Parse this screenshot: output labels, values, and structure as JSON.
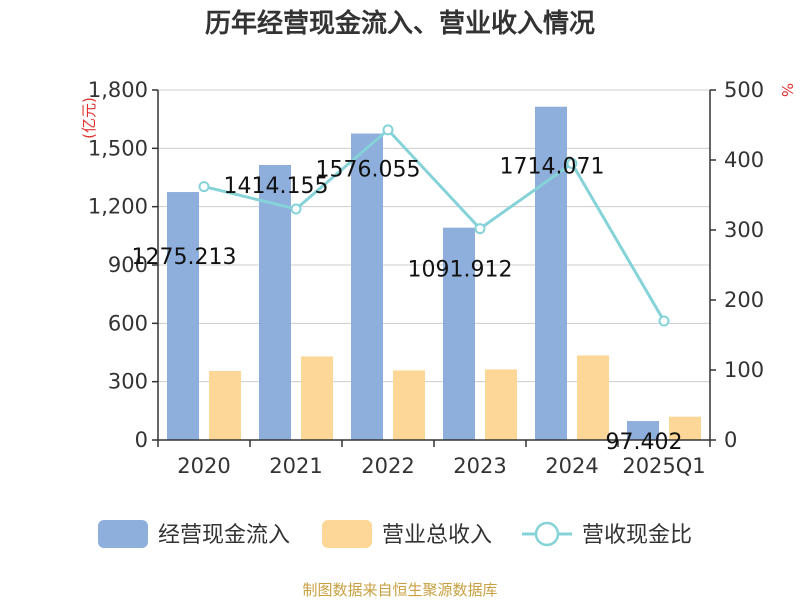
{
  "colors": {
    "cash_flow": "#8eaedb",
    "revenue": "#fdd797",
    "ratio": "#85d3d8",
    "axis": "#333333",
    "grid": "#cccccc",
    "unit": "#e03030",
    "source": "#c8a040"
  },
  "chart_data": {
    "type": "bar",
    "title": "历年经营现金流入、营业收入情况",
    "categories": [
      "2020",
      "2021",
      "2022",
      "2023",
      "2024",
      "2025Q1"
    ],
    "y_left": {
      "unit": "(亿元)",
      "ylim": [
        0,
        1800
      ],
      "ticks": [
        "0",
        "300",
        "600",
        "900",
        "1,200",
        "1,500",
        "1,800"
      ],
      "tick_values": [
        0,
        300,
        600,
        900,
        1200,
        1500,
        1800
      ]
    },
    "y_right": {
      "unit": "%",
      "ylim": [
        0,
        500
      ],
      "ticks": [
        "0",
        "100",
        "200",
        "300",
        "400",
        "500"
      ],
      "tick_values": [
        0,
        100,
        200,
        300,
        400,
        500
      ]
    },
    "series": [
      {
        "name": "经营现金流入",
        "type": "bar",
        "axis": "left",
        "values": [
          1275.213,
          1414.155,
          1576.055,
          1091.912,
          1714.071,
          97.402
        ],
        "labels": [
          "1275.213",
          "1414.155",
          "1576.055",
          "1091.912",
          "1714.071",
          "97.402"
        ]
      },
      {
        "name": "营业总收入",
        "type": "bar",
        "axis": "left",
        "values": [
          355,
          430,
          358,
          363,
          435,
          120
        ]
      },
      {
        "name": "营收现金比",
        "type": "line",
        "axis": "right",
        "values": [
          362,
          330,
          443,
          302,
          395,
          170
        ]
      }
    ],
    "grid": true,
    "legend": "bottom"
  },
  "footer": {
    "source": "制图数据来自恒生聚源数据库"
  }
}
